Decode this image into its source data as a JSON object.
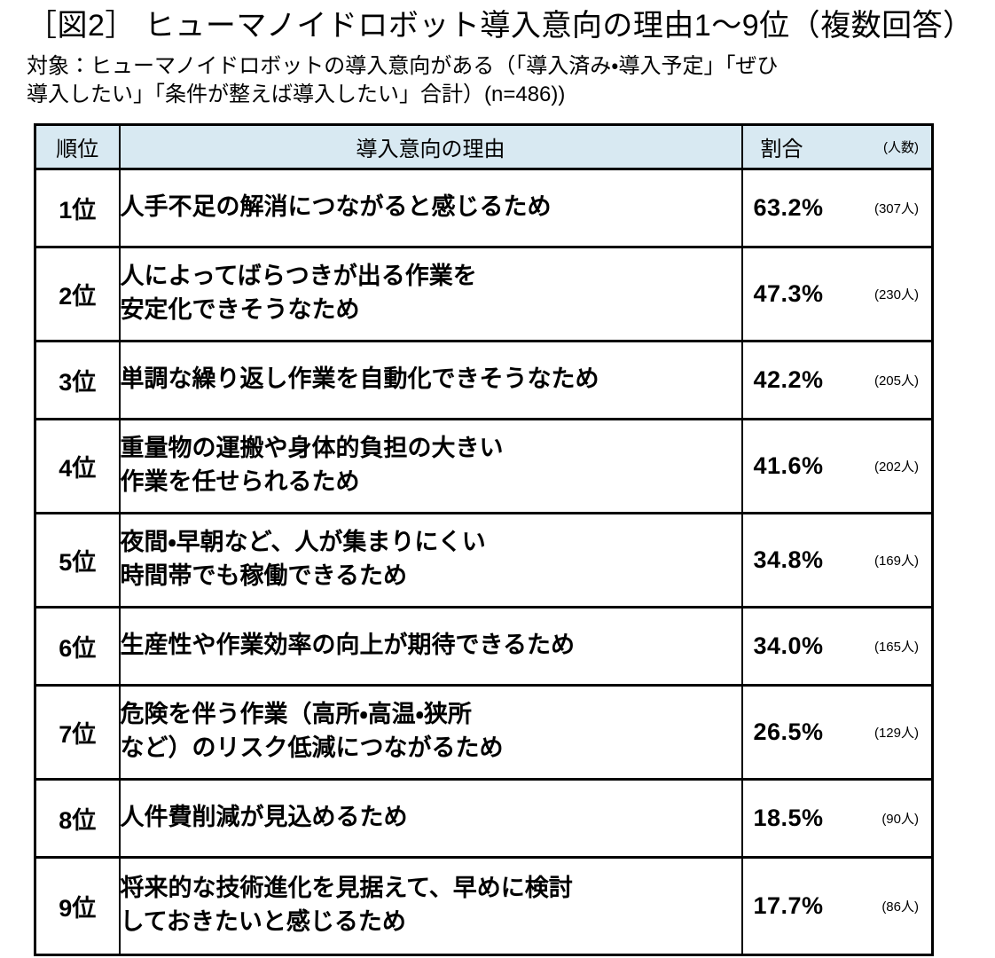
{
  "figure": {
    "title": "［図2］ ヒューマノイドロボット導入意向の理由1～9位（複数回答）",
    "subtitle": "対象：ヒューマノイドロボットの導入意向がある（「導入済み・導入予定」「ぜひ\n導入したい」「条件が整えば導入したい」合計）(n=486))"
  },
  "colors": {
    "header_bg": "#d8e9f2",
    "border": "#000000",
    "text": "#000000"
  },
  "table": {
    "headers": {
      "rank": "順位",
      "reason": "導入意向の理由",
      "ratio": "割合",
      "count": "(人数)"
    },
    "rows": [
      {
        "rank": "1位",
        "reason": "人手不足の解消につながると感じるため",
        "percent": "63.2%",
        "count": "(307人)"
      },
      {
        "rank": "2位",
        "reason": "人によってばらつきが出る作業を\n安定化できそうなため",
        "percent": "47.3%",
        "count": "(230人)"
      },
      {
        "rank": "3位",
        "reason": "単調な繰り返し作業を自動化できそうなため",
        "percent": "42.2%",
        "count": "(205人)"
      },
      {
        "rank": "4位",
        "reason": "重量物の運搬や身体的負担の大きい\n作業を任せられるため",
        "percent": "41.6%",
        "count": "(202人)"
      },
      {
        "rank": "5位",
        "reason": "夜間・早朝など、人が集まりにくい\n時間帯でも稼働できるため",
        "percent": "34.8%",
        "count": "(169人)"
      },
      {
        "rank": "6位",
        "reason": "生産性や作業効率の向上が期待できるため",
        "percent": "34.0%",
        "count": "(165人)"
      },
      {
        "rank": "7位",
        "reason": "危険を伴う作業（高所・高温・狭所\nなど）のリスク低減につながるため",
        "percent": "26.5%",
        "count": "(129人)"
      },
      {
        "rank": "8位",
        "reason": "人件費削減が見込めるため",
        "percent": "18.5%",
        "count": "(90人)"
      },
      {
        "rank": "9位",
        "reason": "将来的な技術進化を見据えて、早めに検討\nしておきたいと感じるため",
        "percent": "17.7%",
        "count": "(86人)"
      }
    ]
  },
  "chart_data": {
    "type": "table",
    "title": "［図2］ ヒューマノイドロボット導入意向の理由1～9位（複数回答）",
    "subtitle": "対象：ヒューマノイドロボットの導入意向がある（「導入済み・導入予定」「ぜひ導入したい」「条件が整えば導入したい」合計）(n=486)",
    "n": 486,
    "columns": [
      "順位",
      "導入意向の理由",
      "割合",
      "人数"
    ],
    "categories": [
      "人手不足の解消につながると感じるため",
      "人によってばらつきが出る作業を安定化できそうなため",
      "単調な繰り返し作業を自動化できそうなため",
      "重量物の運搬や身体的負担の大きい作業を任せられるため",
      "夜間・早朝など、人が集まりにくい時間帯でも稼働できるため",
      "生産性や作業効率の向上が期待できるため",
      "危険を伴う作業（高所・高温・狭所など）のリスク低減につながるため",
      "人件費削減が見込めるため",
      "将来的な技術進化を見据えて、早めに検討しておきたいと感じるため"
    ],
    "series": [
      {
        "name": "割合(%)",
        "values": [
          63.2,
          47.3,
          42.2,
          41.6,
          34.8,
          34.0,
          26.5,
          18.5,
          17.7
        ]
      },
      {
        "name": "人数",
        "values": [
          307,
          230,
          205,
          202,
          169,
          165,
          129,
          90,
          86
        ]
      }
    ],
    "ranks": [
      "1位",
      "2位",
      "3位",
      "4位",
      "5位",
      "6位",
      "7位",
      "8位",
      "9位"
    ]
  }
}
